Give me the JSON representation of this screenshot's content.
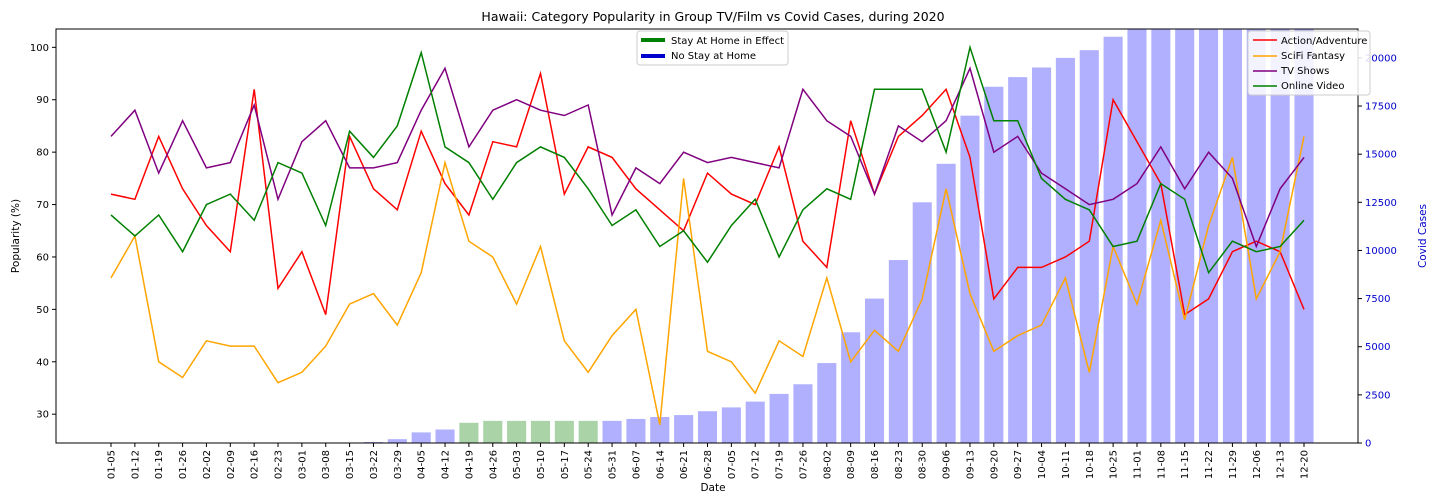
{
  "chart_data": {
    "type": "line",
    "title": "Hawaii: Category Popularity in Group TV/Film vs Covid Cases, during 2020",
    "xlabel": "Date",
    "ylabel": "Popularity (%)",
    "y2label": "Covid Cases",
    "ylim": [
      24.5,
      103.5
    ],
    "y2lim": [
      0,
      21500
    ],
    "yticks": [
      30,
      40,
      50,
      60,
      70,
      80,
      90,
      100
    ],
    "y2ticks": [
      0,
      2500,
      5000,
      7500,
      10000,
      12500,
      15000,
      17500,
      20000
    ],
    "y2tick_labels": [
      "0",
      "2500",
      "5000",
      "7500",
      "10000",
      "12500",
      "15000",
      "17500",
      "20000"
    ],
    "grid": false,
    "categories": [
      "01-05",
      "01-12",
      "01-19",
      "01-26",
      "02-02",
      "02-09",
      "02-16",
      "02-23",
      "03-01",
      "03-08",
      "03-15",
      "03-22",
      "03-29",
      "04-05",
      "04-12",
      "04-19",
      "04-26",
      "05-03",
      "05-10",
      "05-17",
      "05-24",
      "05-31",
      "06-07",
      "06-14",
      "06-21",
      "06-28",
      "07-05",
      "07-12",
      "07-19",
      "07-26",
      "08-02",
      "08-09",
      "08-16",
      "08-23",
      "08-30",
      "09-06",
      "09-13",
      "09-20",
      "09-27",
      "10-04",
      "10-11",
      "10-18",
      "10-25",
      "11-01",
      "11-08",
      "11-15",
      "11-22",
      "11-29",
      "12-06",
      "12-13",
      "12-20"
    ],
    "series": [
      {
        "name": "Action/Adventure",
        "color": "#ff0000",
        "values": [
          72,
          71,
          83,
          73,
          66,
          61,
          92,
          54,
          61,
          49,
          83,
          73,
          69,
          84,
          74,
          68,
          82,
          81,
          95,
          72,
          81,
          79,
          73,
          69,
          65,
          76,
          72,
          70,
          81,
          63,
          58,
          86,
          72,
          83,
          87,
          92,
          79,
          52,
          58,
          58,
          60,
          63,
          90,
          82,
          74,
          49,
          52,
          61,
          63,
          61,
          50
        ]
      },
      {
        "name": "SciFi Fantasy",
        "color": "#ffa500",
        "values": [
          56,
          64,
          40,
          37,
          44,
          43,
          43,
          36,
          38,
          43,
          51,
          53,
          47,
          57,
          78,
          63,
          60,
          51,
          62,
          44,
          38,
          45,
          50,
          28,
          75,
          42,
          40,
          34,
          44,
          41,
          56,
          40,
          46,
          42,
          52,
          73,
          53,
          42,
          45,
          47,
          56,
          38,
          62,
          51,
          67,
          48,
          66,
          79,
          52,
          61,
          83
        ]
      },
      {
        "name": "TV Shows",
        "color": "#800080",
        "values": [
          83,
          88,
          76,
          86,
          77,
          78,
          89,
          71,
          82,
          86,
          77,
          77,
          78,
          88,
          96,
          81,
          88,
          90,
          88,
          87,
          89,
          68,
          77,
          74,
          80,
          78,
          79,
          78,
          77,
          92,
          86,
          83,
          72,
          85,
          82,
          86,
          96,
          80,
          83,
          76,
          73,
          70,
          71,
          74,
          81,
          73,
          80,
          75,
          62,
          73,
          79
        ]
      },
      {
        "name": "Online Video",
        "color": "#008000",
        "values": [
          68,
          64,
          68,
          61,
          70,
          72,
          67,
          78,
          76,
          66,
          84,
          79,
          85,
          99,
          81,
          78,
          71,
          78,
          81,
          79,
          73,
          66,
          69,
          62,
          65,
          59,
          66,
          71,
          60,
          69,
          73,
          71,
          92,
          92,
          92,
          80,
          100,
          86,
          86,
          75,
          71,
          69,
          62,
          63,
          74,
          71,
          57,
          63,
          61,
          62,
          67
        ]
      }
    ],
    "covid_cases": [
      0,
      0,
      0,
      0,
      0,
      0,
      0,
      0,
      0,
      0,
      0,
      50,
      200,
      550,
      700,
      1050,
      1150,
      1150,
      1150,
      1150,
      1150,
      1150,
      1250,
      1350,
      1450,
      1650,
      1850,
      2150,
      2550,
      3050,
      4150,
      5750,
      7500,
      9500,
      12500,
      14500,
      17000,
      18500,
      19000,
      19500,
      20000,
      20400,
      21100,
      21600,
      22400,
      22900,
      23600,
      24100,
      24800,
      25500,
      25900
    ],
    "covid_bar_colors": {
      "stay_at_home": "#aad4a8",
      "no_stay_at_home": "#b0b0ff"
    },
    "stay_at_home_categories": [
      "04-19",
      "04-26",
      "05-03",
      "05-10",
      "05-17",
      "05-24"
    ],
    "legend_left": {
      "placement": "top-center",
      "entries": [
        {
          "label": "Stay At Home in Effect",
          "color": "#008000"
        },
        {
          "label": "No Stay at Home",
          "color": "#0000cd"
        }
      ]
    },
    "legend_right": {
      "placement": "top-right"
    }
  }
}
